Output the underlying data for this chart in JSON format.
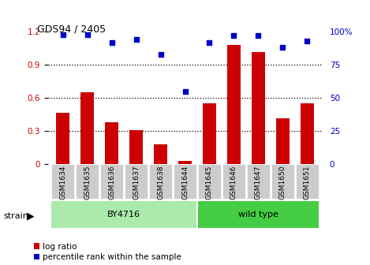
{
  "title": "GDS94 / 2405",
  "samples": [
    "GSM1634",
    "GSM1635",
    "GSM1636",
    "GSM1637",
    "GSM1638",
    "GSM1644",
    "GSM1645",
    "GSM1646",
    "GSM1647",
    "GSM1650",
    "GSM1651"
  ],
  "log_ratio": [
    0.47,
    0.65,
    0.38,
    0.31,
    0.18,
    0.03,
    0.55,
    1.08,
    1.02,
    0.42,
    0.55
  ],
  "percentile": [
    98,
    98,
    92,
    94,
    83,
    55,
    92,
    97,
    97,
    88,
    93
  ],
  "bar_color": "#cc0000",
  "dot_color": "#0000cc",
  "ylim_left": [
    0,
    1.2
  ],
  "ylim_right": [
    0,
    100
  ],
  "yticks_left": [
    0,
    0.3,
    0.6,
    0.9,
    1.2
  ],
  "ytick_labels_left": [
    "0",
    "0.3",
    "0.6",
    "0.9",
    "1.2"
  ],
  "yticks_right": [
    0,
    25,
    50,
    75,
    100
  ],
  "ytick_labels_right": [
    "0",
    "25",
    "50",
    "75",
    "100%"
  ],
  "groups": [
    {
      "label": "BY4716",
      "start": 0,
      "end": 5,
      "color": "#aaeaaa"
    },
    {
      "label": "wild type",
      "start": 6,
      "end": 10,
      "color": "#44cc44"
    }
  ],
  "strain_label": "strain",
  "legend_bar": "log ratio",
  "legend_dot": "percentile rank within the sample",
  "bg": "#ffffff",
  "tick_color_left": "#cc0000",
  "tick_color_right": "#0000cc",
  "xticklabel_bg": "#cccccc"
}
